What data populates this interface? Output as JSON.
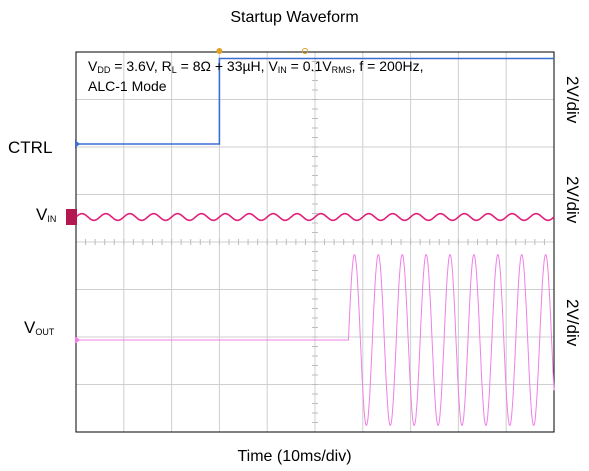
{
  "chart_data": {
    "type": "line",
    "title": "Startup Waveform",
    "xlabel": "Time (10ms/div)",
    "annotation": {
      "vdd": "3.6V",
      "rl": "8Ω + 33µH",
      "vin": "0.1V",
      "vin_unit": "RMS",
      "freq": "200Hz",
      "mode": "ALC-1 Mode"
    },
    "x_divisions": 10,
    "y_divisions": 8,
    "grid": true,
    "channels": [
      {
        "name": "CTRL",
        "label_main": "CTRL",
        "label_sub": "",
        "scale": "2V/div",
        "color": "#3a6fd1"
      },
      {
        "name": "VIN",
        "label_main": "V",
        "label_sub": "IN",
        "scale": "2V/div",
        "color": "#e0207a"
      },
      {
        "name": "VOUT",
        "label_main": "V",
        "label_sub": "OUT",
        "scale": "2V/div",
        "color": "#f080e6"
      }
    ],
    "series": [
      {
        "name": "CTRL",
        "x": [
          0,
          30,
          30,
          100
        ],
        "y": [
          0,
          0,
          3.6,
          3.6
        ],
        "units_x": "ms",
        "units_y": "V"
      },
      {
        "name": "VIN",
        "type": "sine",
        "frequency_hz": 200,
        "amplitude_v": 0.14,
        "start_ms": 0,
        "end_ms": 100
      },
      {
        "name": "VOUT",
        "type": "sine",
        "frequency_hz": 200,
        "amplitude_v": 3.6,
        "start_ms": 57,
        "end_ms": 100
      }
    ]
  }
}
